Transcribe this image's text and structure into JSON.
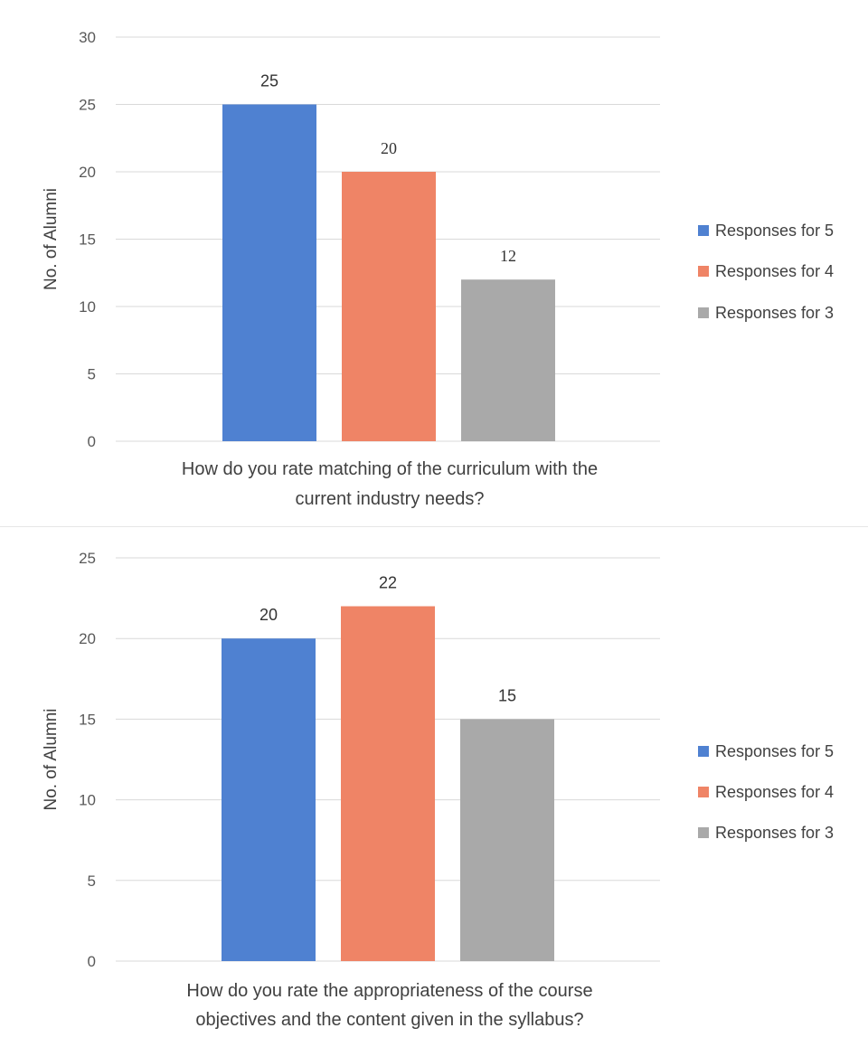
{
  "chart_data": [
    {
      "type": "bar",
      "categories": [
        "How do you rate matching of the curriculum with the current industry needs?"
      ],
      "category_label_lines": [
        "How do you rate matching of the curriculum with the",
        "current industry needs?"
      ],
      "series": [
        {
          "name": "Responses for 5",
          "values": [
            25
          ],
          "color": "#4f81d1"
        },
        {
          "name": "Responses for 4",
          "values": [
            20
          ],
          "color": "#ef8466"
        },
        {
          "name": "Responses for 3",
          "values": [
            12
          ],
          "color": "#a9a9a9"
        }
      ],
      "title": "",
      "xlabel": "",
      "ylabel": "No. of Alumni",
      "ylim": [
        0,
        30
      ],
      "yticks": [
        "0",
        "5",
        "10",
        "15",
        "20",
        "25",
        "30"
      ],
      "data_labels": [
        "25",
        "20",
        "12"
      ],
      "grid": true,
      "legend": "right"
    },
    {
      "type": "bar",
      "categories": [
        "How do you rate the appropriateness of the course objectives and the content given in the syllabus?"
      ],
      "category_label_lines": [
        "How do you rate the appropriateness of the course",
        "objectives and the content given in the syllabus?"
      ],
      "series": [
        {
          "name": "Responses for 5",
          "values": [
            20
          ],
          "color": "#4f81d1"
        },
        {
          "name": "Responses for 4",
          "values": [
            22
          ],
          "color": "#ef8466"
        },
        {
          "name": "Responses for 3",
          "values": [
            15
          ],
          "color": "#a9a9a9"
        }
      ],
      "title": "",
      "xlabel": "",
      "ylabel": "No. of Alumni",
      "ylim": [
        0,
        25
      ],
      "yticks": [
        "0",
        "5",
        "10",
        "15",
        "20",
        "25"
      ],
      "data_labels": [
        "20",
        "22",
        "15"
      ],
      "grid": true,
      "legend": "right"
    }
  ]
}
